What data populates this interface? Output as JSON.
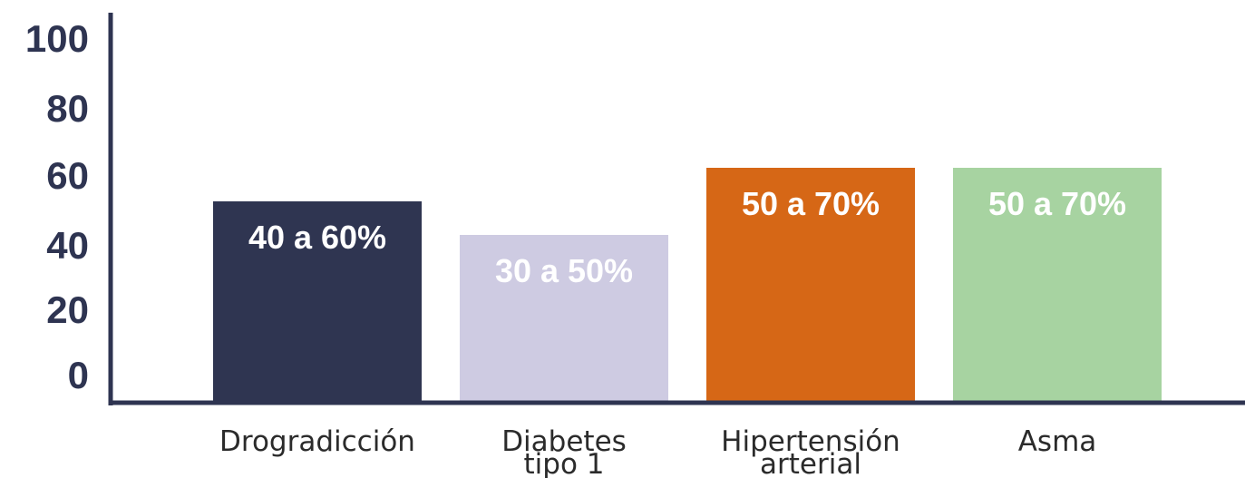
{
  "chart_data": {
    "type": "bar",
    "title": "",
    "xlabel": "",
    "ylabel": "",
    "ylim": [
      0,
      100
    ],
    "yticks": [
      "0",
      "20",
      "40",
      "60",
      "80",
      "100"
    ],
    "categories": [
      [
        "Drogradicción"
      ],
      [
        "Diabetes",
        "tipo 1"
      ],
      [
        "Hipertensión",
        "arterial"
      ],
      [
        "Asma"
      ]
    ],
    "values": [
      60,
      50,
      70,
      70
    ],
    "data_labels": [
      "40 a 60%",
      "30 a 50%",
      "50 a 70%",
      "50 a 70%"
    ],
    "colors": [
      "#2f3551",
      "#cecbe2",
      "#d66716",
      "#a7d3a1"
    ],
    "axis_color": "#2e3451",
    "grid": false,
    "legend": "none"
  }
}
